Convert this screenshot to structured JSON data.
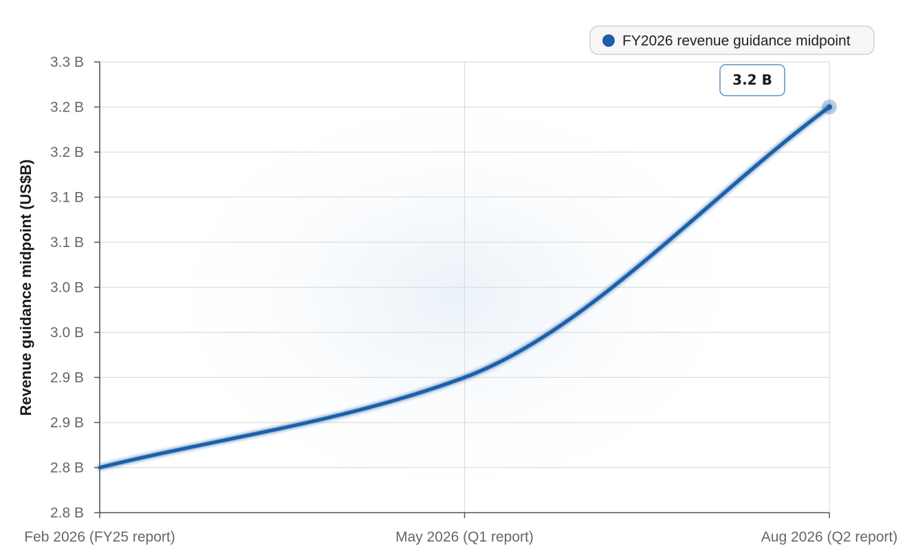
{
  "chart_data": {
    "type": "line",
    "title": "",
    "xlabel": "",
    "ylabel": "Revenue guidance midpoint (US$B)",
    "categories": [
      "Feb 2026 (FY25 report)",
      "May 2026 (Q1 report)",
      "Aug 2026 (Q2 report)"
    ],
    "series": [
      {
        "name": "FY2026 revenue guidance midpoint",
        "color": "#1f5fa8",
        "values": [
          2.8,
          2.9,
          3.2
        ]
      }
    ],
    "ylim": [
      2.75,
      3.25
    ],
    "yticks": [
      2.75,
      2.8,
      2.85,
      2.9,
      2.95,
      3.0,
      3.05,
      3.1,
      3.15,
      3.2,
      3.25
    ],
    "ytick_labels": [
      "2.8 B",
      "2.8 B",
      "2.9 B",
      "2.9 B",
      "3.0 B",
      "3.0 B",
      "3.1 B",
      "3.1 B",
      "3.2 B",
      "3.2 B",
      "3.3 B"
    ],
    "grid": true,
    "legend": "top-right",
    "annotation": {
      "text": "3.2 B",
      "point_index": 2
    }
  }
}
